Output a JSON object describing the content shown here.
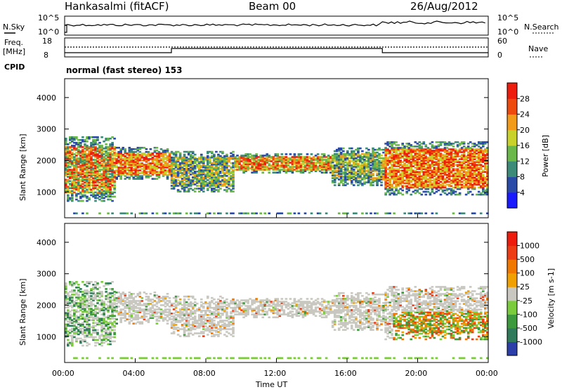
{
  "header": {
    "station": "Hankasalmi (fitACF)",
    "beam": "Beam 00",
    "date": "26/Aug/2012"
  },
  "noise_panel": {
    "left_label": "N.Sky",
    "left_ticks": [
      "10^5",
      "10^0"
    ],
    "right_label": "N.Search",
    "right_ticks": [
      "10^5",
      "10^0"
    ]
  },
  "freq_panel": {
    "left_label_line1": "Freq.",
    "left_label_line2": "[MHz]",
    "left_ticks": [
      "18",
      "8"
    ],
    "right_label": "Nave",
    "right_ticks": [
      "60",
      "0"
    ],
    "cpid_label": "CPID",
    "cpid_text": "normal (fast stereo) 153"
  },
  "chart_data": [
    {
      "type": "heatmap",
      "title": "",
      "ylabel": "Slant Range [km]",
      "ylim": [
        180,
        4600
      ],
      "yticks": [
        "1000",
        "2000",
        "3000",
        "4000"
      ],
      "x_hours": [
        0,
        4,
        8,
        12,
        16,
        20,
        24
      ],
      "colorbar": {
        "label": "Power [dB]",
        "ticks": [
          "4",
          "8",
          "12",
          "16",
          "20",
          "24",
          "28"
        ],
        "range": [
          0,
          30
        ],
        "colors": [
          "#1a1aff",
          "#2a4aa8",
          "#3c8a78",
          "#6ab84a",
          "#c8d22a",
          "#f29a1a",
          "#ee4a0e",
          "#ee1c0c"
        ]
      },
      "echo_regions": [
        {
          "t0": 0.0,
          "t1": 2.8,
          "r0": 700,
          "r1": 2750,
          "level": "mixed-high"
        },
        {
          "t0": 2.8,
          "t1": 6.0,
          "r0": 1400,
          "r1": 2400,
          "level": "high"
        },
        {
          "t0": 6.0,
          "t1": 9.5,
          "r0": 1000,
          "r1": 2300,
          "level": "medium"
        },
        {
          "t0": 9.5,
          "t1": 15.0,
          "r0": 1600,
          "r1": 2200,
          "level": "high-band"
        },
        {
          "t0": 15.0,
          "t1": 18.0,
          "r0": 1200,
          "r1": 2400,
          "level": "medium-high"
        },
        {
          "t0": 18.0,
          "t1": 24.0,
          "r0": 900,
          "r1": 2600,
          "level": "high"
        }
      ]
    },
    {
      "type": "heatmap",
      "title": "",
      "ylabel": "Slant Range [km]",
      "ylim": [
        180,
        4600
      ],
      "yticks": [
        "1000",
        "2000",
        "3000",
        "4000"
      ],
      "xticks": [
        "00:00",
        "04:00",
        "08:00",
        "12:00",
        "16:00",
        "20:00",
        "00:00"
      ],
      "xlabel": "Time UT",
      "colorbar": {
        "label": "Velocity [m s-1]",
        "ticks": [
          "1000",
          "500",
          "100",
          "25",
          "-25",
          "-100",
          "-500",
          "-1000"
        ],
        "range": [
          -1000,
          1000
        ],
        "colors": [
          "#2c3ea8",
          "#2e7a5a",
          "#3c9a3c",
          "#7acc3c",
          "#c8c8c0",
          "#f0a000",
          "#f07800",
          "#ee3c14",
          "#ee1c0c"
        ]
      }
    }
  ]
}
